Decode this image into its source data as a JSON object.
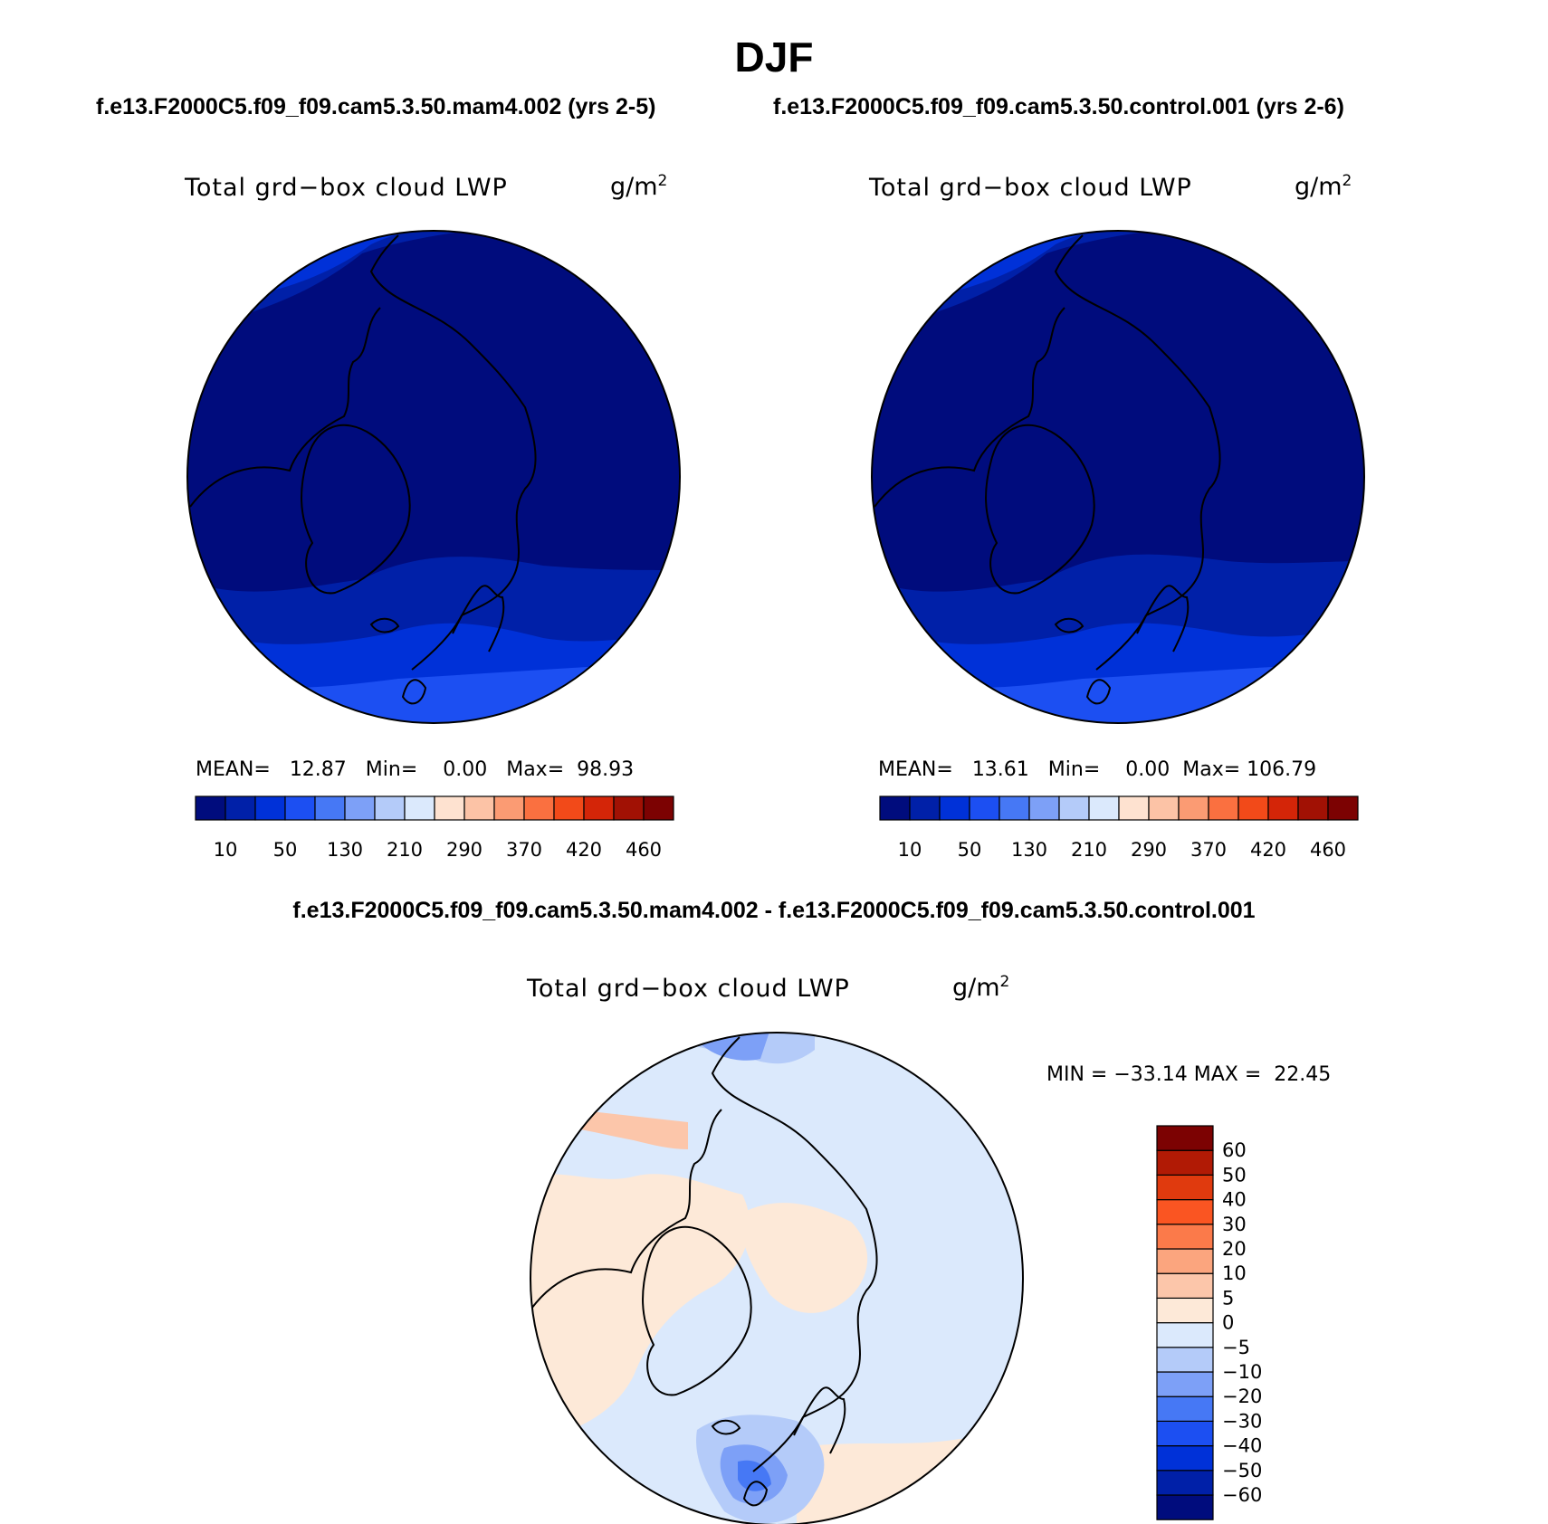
{
  "title": "DJF",
  "subtitle_left": "f.e13.F2000C5.f09_f09.cam5.3.50.mam4.002 (yrs 2-5)",
  "subtitle_right": "f.e13.F2000C5.f09_f09.cam5.3.50.control.001 (yrs 2-6)",
  "diff_title": "f.e13.F2000C5.f09_f09.cam5.3.50.mam4.002 - f.e13.F2000C5.f09_f09.cam5.3.50.control.001",
  "panels": [
    {
      "variable": "Total grd−box cloud LWP",
      "units": "g/m",
      "units_exp": "2",
      "mean_label": "MEAN=",
      "mean": "12.87",
      "min_label": "Min=",
      "min": "0.00",
      "max_label": "Max=",
      "max": "98.93"
    },
    {
      "variable": "Total grd−box cloud LWP",
      "units": "g/m",
      "units_exp": "2",
      "mean_label": "MEAN=",
      "mean": "13.61",
      "min_label": "Min=",
      "min": "0.00",
      "max_label": "Max=",
      "max": "106.79"
    }
  ],
  "diff_panel": {
    "variable": "Total grd−box cloud LWP",
    "units": "g/m",
    "units_exp": "2",
    "stats": "MIN = −33.14 MAX =  22.45"
  },
  "colorbar_abs": {
    "colors": [
      "#000c7d",
      "#0020a8",
      "#0031d8",
      "#1c4ff2",
      "#4678f5",
      "#7da0f7",
      "#b4cbf9",
      "#dbe9fc",
      "#fee2d0",
      "#fcc3a6",
      "#fb9b73",
      "#fa7040",
      "#f24a19",
      "#d42508",
      "#a11104",
      "#7c0202"
    ],
    "tick_labels": [
      "10",
      "50",
      "130",
      "210",
      "290",
      "370",
      "420",
      "460"
    ]
  },
  "colorbar_diff": {
    "colors": [
      "#000c7d",
      "#0020a8",
      "#0031d8",
      "#1c4ff2",
      "#4678f5",
      "#7da0f7",
      "#b4cbf9",
      "#dbe9fc",
      "#fde9d8",
      "#fcc6aa",
      "#fba57e",
      "#fb7a4a",
      "#fa5522",
      "#e03a0e",
      "#b11a05",
      "#7c0202"
    ],
    "tick_labels": [
      "60",
      "50",
      "40",
      "30",
      "20",
      "10",
      "5",
      "0",
      "−5",
      "−10",
      "−20",
      "−30",
      "−40",
      "−50",
      "−60"
    ]
  },
  "map_colors": {
    "deep": "#000c7d",
    "dark": "#0020a8",
    "mid": "#0031d8",
    "light": "#1c4ff2",
    "diff_bg": "#dbe9fc",
    "diff_pos": "#fde9d8",
    "diff_pos2": "#fcc6aa",
    "diff_neg": "#b4cbf9",
    "diff_neg2": "#7da0f7",
    "diff_neg3": "#4678f5"
  }
}
